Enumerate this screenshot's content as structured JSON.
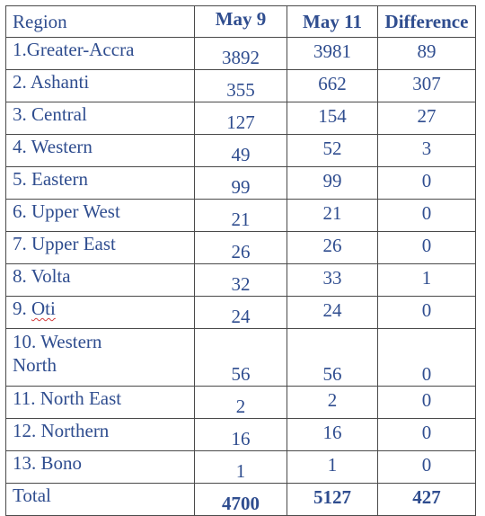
{
  "table": {
    "headers": {
      "region": "Region",
      "may9": "May 9",
      "may11": "May 11",
      "difference": "Difference"
    },
    "rows": [
      {
        "region": "1.Greater-Accra",
        "may9": "3892",
        "may11": "3981",
        "difference": "89"
      },
      {
        "region": "2. Ashanti",
        "may9": "355",
        "may11": "662",
        "difference": "307"
      },
      {
        "region": "3. Central",
        "may9": "127",
        "may11": "154",
        "difference": "27"
      },
      {
        "region": "4. Western",
        "may9": "49",
        "may11": "52",
        "difference": "3"
      },
      {
        "region": "5. Eastern",
        "may9": "99",
        "may11": "99",
        "difference": "0"
      },
      {
        "region": "6. Upper West",
        "may9": "21",
        "may11": "21",
        "difference": "0"
      },
      {
        "region": "7. Upper East",
        "may9": "26",
        "may11": "26",
        "difference": "0"
      },
      {
        "region": "8. Volta",
        "may9": "32",
        "may11": "33",
        "difference": "1"
      },
      {
        "region_prefix": "9. ",
        "region_word": "Oti",
        "may9": "24",
        "may11": "24",
        "difference": "0"
      },
      {
        "region_line1": "10. Western",
        "region_line2": "North",
        "may9": "56",
        "may11": "56",
        "difference": "0"
      },
      {
        "region": "11. North East",
        "may9": "2",
        "may11": "2",
        "difference": "0"
      },
      {
        "region": "12. Northern",
        "may9": "16",
        "may11": "16",
        "difference": "0"
      },
      {
        "region": "13. Bono",
        "may9": "1",
        "may11": "1",
        "difference": "0"
      }
    ],
    "total": {
      "region": "Total",
      "may9": "4700",
      "may11": "5127",
      "difference": "427"
    }
  }
}
